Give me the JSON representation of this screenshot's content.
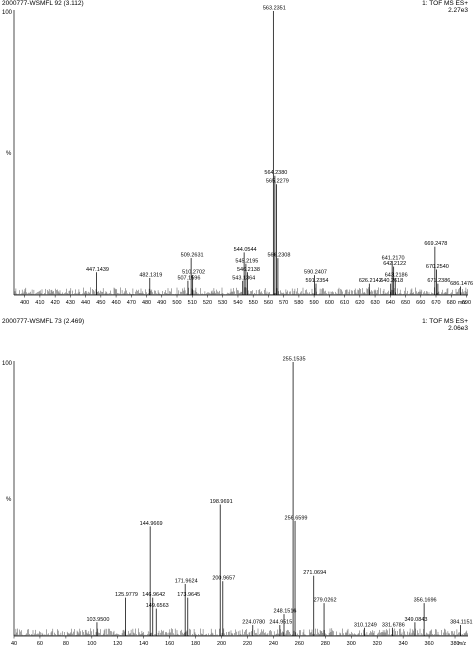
{
  "chart_data": [
    {
      "type": "spectrum",
      "header_left": "2000777-WSMFL 92 (3.112)",
      "header_right": "1: TOF MS ES+",
      "header_right2": "2.27e3",
      "y_top_label": "100",
      "y_unit_label": "%",
      "x_unit_label": "m/z",
      "xlim": [
        393,
        691
      ],
      "ylim": [
        0,
        100
      ],
      "xticks": [
        400,
        410,
        420,
        430,
        440,
        450,
        460,
        470,
        480,
        490,
        500,
        510,
        520,
        530,
        540,
        550,
        560,
        570,
        580,
        590,
        600,
        610,
        620,
        630,
        640,
        650,
        660,
        670,
        680,
        690
      ],
      "peaks": [
        {
          "x": 447.1439,
          "y": 8,
          "label": "447.1439"
        },
        {
          "x": 482.1319,
          "y": 6,
          "label": "482.1319"
        },
        {
          "x": 507.1596,
          "y": 5,
          "label": "507.1596"
        },
        {
          "x": 509.2631,
          "y": 13,
          "label": "509.2631"
        },
        {
          "x": 510.2702,
          "y": 7,
          "label": "510.2702"
        },
        {
          "x": 543.1364,
          "y": 5,
          "label": "543.1364"
        },
        {
          "x": 544.0544,
          "y": 15,
          "label": "544.0544"
        },
        {
          "x": 545.2195,
          "y": 11,
          "label": "545.2195"
        },
        {
          "x": 546.2138,
          "y": 8,
          "label": "546.2138"
        },
        {
          "x": 563.2351,
          "y": 100,
          "label": "563.2351"
        },
        {
          "x": 564.238,
          "y": 42,
          "label": "564.2380"
        },
        {
          "x": 565.2279,
          "y": 39,
          "label": "565.2279"
        },
        {
          "x": 566.2308,
          "y": 13,
          "label": "566.2308"
        },
        {
          "x": 590.2407,
          "y": 7,
          "label": "590.2407"
        },
        {
          "x": 591.2354,
          "y": 4,
          "label": "591.2354"
        },
        {
          "x": 626.2142,
          "y": 4,
          "label": "626.2142"
        },
        {
          "x": 640.2618,
          "y": 4,
          "label": "640.2618"
        },
        {
          "x": 641.217,
          "y": 12,
          "label": "641.2170"
        },
        {
          "x": 642.2122,
          "y": 10,
          "label": "642.2122"
        },
        {
          "x": 643.2186,
          "y": 6,
          "label": "643.2186"
        },
        {
          "x": 669.2478,
          "y": 17,
          "label": "669.2478"
        },
        {
          "x": 670.254,
          "y": 9,
          "label": "670.2540"
        },
        {
          "x": 671.2386,
          "y": 4,
          "label": "671.2386"
        },
        {
          "x": 686.1476,
          "y": 3,
          "label": "686.1476"
        }
      ]
    },
    {
      "type": "spectrum",
      "header_left": "2000777-WSMFL 73 (2.469)",
      "header_right": "1: TOF MS ES+",
      "header_right2": "2.06e3",
      "y_top_label": "100",
      "y_unit_label": "%",
      "x_unit_label": "m/z",
      "xlim": [
        40,
        390
      ],
      "ylim": [
        0,
        100
      ],
      "xticks": [
        40,
        60,
        80,
        100,
        120,
        140,
        160,
        180,
        200,
        220,
        240,
        260,
        280,
        300,
        320,
        340,
        360,
        380
      ],
      "peaks": [
        {
          "x": 103.95,
          "y": 5,
          "label": "103.9500"
        },
        {
          "x": 125.9779,
          "y": 14,
          "label": "125.9779"
        },
        {
          "x": 144.9669,
          "y": 40,
          "label": "144.9669"
        },
        {
          "x": 146.9642,
          "y": 14,
          "label": "146.9642"
        },
        {
          "x": 149.6563,
          "y": 10,
          "label": "149.6563"
        },
        {
          "x": 171.9624,
          "y": 19,
          "label": "171.9624"
        },
        {
          "x": 173.9645,
          "y": 14,
          "label": "173.9645"
        },
        {
          "x": 198.9691,
          "y": 48,
          "label": "198.9691"
        },
        {
          "x": 200.9657,
          "y": 20,
          "label": "200.9657"
        },
        {
          "x": 224.078,
          "y": 4,
          "label": "224.0780"
        },
        {
          "x": 244.9515,
          "y": 4,
          "label": "244.9515"
        },
        {
          "x": 248.1516,
          "y": 8,
          "label": "248.1516"
        },
        {
          "x": 255.1535,
          "y": 100,
          "label": "255.1535"
        },
        {
          "x": 256.6599,
          "y": 42,
          "label": "256.6599"
        },
        {
          "x": 271.0694,
          "y": 22,
          "label": "271.0694"
        },
        {
          "x": 279.0262,
          "y": 12,
          "label": "279.0262"
        },
        {
          "x": 310.1249,
          "y": 3,
          "label": "310.1249"
        },
        {
          "x": 331.6786,
          "y": 3,
          "label": "331.6786"
        },
        {
          "x": 349.0843,
          "y": 5,
          "label": "349.0843"
        },
        {
          "x": 356.1696,
          "y": 12,
          "label": "356.1696"
        },
        {
          "x": 384.1151,
          "y": 4,
          "label": "384.1151"
        }
      ]
    }
  ]
}
